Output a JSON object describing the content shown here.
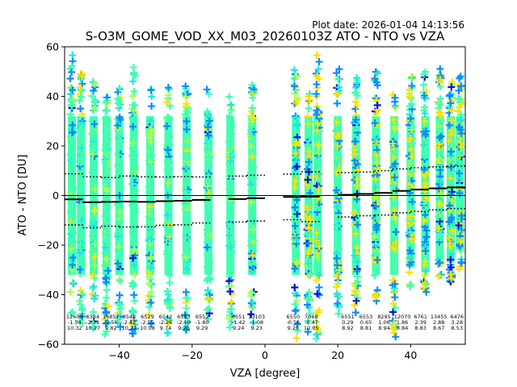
{
  "plot_date": "Plot date: 2026-01-04 14:13:56",
  "chart_data": {
    "type": "scatter",
    "title": "S-O3M_GOME_VOD_XX_M03_20260103Z ATO - NTO vs VZA",
    "xlabel": "VZA [degree]",
    "ylabel": "ATO - NTO [DU]",
    "xlim": [
      -55,
      55
    ],
    "ylim": [
      -60,
      60
    ],
    "xticks": [
      -40,
      -20,
      0,
      20,
      40
    ],
    "xtick_labels": [
      "−40",
      "−20",
      "0",
      "20",
      "40"
    ],
    "yticks": [
      -60,
      -40,
      -20,
      0,
      20,
      40,
      60
    ],
    "ytick_labels": [
      "−60",
      "−40",
      "−20",
      "0",
      "20",
      "40",
      "60"
    ],
    "grid": false,
    "zero_line": 0,
    "colors": {
      "main": "#40ffb0",
      "cyan": "#20e8e0",
      "blue": "#0a8cff",
      "darkblue": "#0010e0",
      "yellow": "#ffe000",
      "lime": "#a8ff50",
      "mean_line": "#000000"
    },
    "point_columns": [
      {
        "vza": -53,
        "ymin": -48,
        "ymax": 57
      },
      {
        "vza": -50.5,
        "ymin": -52,
        "ymax": 50
      },
      {
        "vza": -47,
        "ymin": -54,
        "ymax": 46
      },
      {
        "vza": -43.5,
        "ymin": -56,
        "ymax": 46
      },
      {
        "vza": -40,
        "ymin": -55,
        "ymax": 46
      },
      {
        "vza": -36,
        "ymin": -56,
        "ymax": 55
      },
      {
        "vza": -31.5,
        "ymin": -54,
        "ymax": 43
      },
      {
        "vza": -26.5,
        "ymin": -56,
        "ymax": 44
      },
      {
        "vza": -21.5,
        "ymin": -56,
        "ymax": 47
      },
      {
        "vza": -15.5,
        "ymin": -50,
        "ymax": 43
      },
      {
        "vza": -9.5,
        "ymin": -54,
        "ymax": 41
      },
      {
        "vza": -3.5,
        "ymin": -52,
        "ymax": 45
      },
      {
        "vza": 8.5,
        "ymin": -58,
        "ymax": 53
      },
      {
        "vza": 12,
        "ymin": -57,
        "ymax": 42
      },
      {
        "vza": 14.5,
        "ymin": -58,
        "ymax": 57
      },
      {
        "vza": 20,
        "ymin": -48,
        "ymax": 55
      },
      {
        "vza": 25,
        "ymin": -52,
        "ymax": 48
      },
      {
        "vza": 30.5,
        "ymin": -45,
        "ymax": 52
      },
      {
        "vza": 35.5,
        "ymin": -58,
        "ymax": 41
      },
      {
        "vza": 40,
        "ymin": -37,
        "ymax": 48
      },
      {
        "vza": 44,
        "ymin": -39,
        "ymax": 52
      },
      {
        "vza": 48,
        "ymin": -35,
        "ymax": 52
      },
      {
        "vza": 51,
        "ymin": -35,
        "ymax": 46
      },
      {
        "vza": 53.5,
        "ymin": -30,
        "ymax": 52
      }
    ],
    "bins": [
      {
        "x0": -55,
        "x1": -50,
        "count": "12609",
        "mean": "-1.54",
        "std": "10.32"
      },
      {
        "x0": -50,
        "x1": -45,
        "count": "6384",
        "mean": "-2.71",
        "std": "10.27"
      },
      {
        "x0": -45,
        "x1": -40,
        "count": "16857",
        "mean": "-2.55",
        "std": "9.82"
      },
      {
        "x0": -40,
        "x1": -35,
        "count": "8548",
        "mean": "-2.42",
        "std": "10.27"
      },
      {
        "x0": -35,
        "x1": -30,
        "count": "6529",
        "mean": "-2.55",
        "std": "10.08"
      },
      {
        "x0": -30,
        "x1": -25,
        "count": "6542",
        "mean": "-2.26",
        "std": "9.74"
      },
      {
        "x0": -25,
        "x1": -20,
        "count": "6553",
        "mean": "-2.10",
        "std": "9.70"
      },
      {
        "x0": -20,
        "x1": -15,
        "count": "6552",
        "mean": "-1.80",
        "std": "9.29"
      },
      {
        "x0": -10,
        "x1": -5,
        "count": "6551",
        "mean": "-1.42",
        "std": "9.24"
      },
      {
        "x0": -5,
        "x1": 0,
        "count": "13103",
        "mean": "-1.08",
        "std": "9.23"
      },
      {
        "x0": 5,
        "x1": 10,
        "count": "6550",
        "mean": "-0.56",
        "std": "9.20"
      },
      {
        "x0": 10,
        "x1": 15,
        "count": "7068",
        "mean": "-0.47",
        "std": "10.05"
      },
      {
        "x0": 20,
        "x1": 25,
        "count": "6551",
        "mean": "0.29",
        "std": "8.92"
      },
      {
        "x0": 25,
        "x1": 30,
        "count": "6553",
        "mean": "0.65",
        "std": "8.81"
      },
      {
        "x0": 30,
        "x1": 35,
        "count": "8295",
        "mean": "1.06",
        "std": "8.94"
      },
      {
        "x0": 35,
        "x1": 40,
        "count": "12070",
        "mean": "1.86",
        "std": "8.84"
      },
      {
        "x0": 40,
        "x1": 45,
        "count": "6761",
        "mean": "2.39",
        "std": "8.83"
      },
      {
        "x0": 45,
        "x1": 50,
        "count": "13455",
        "mean": "2.88",
        "std": "8.67"
      },
      {
        "x0": 50,
        "x1": 55,
        "count": "6476",
        "mean": "3.28",
        "std": "8.53"
      }
    ]
  }
}
